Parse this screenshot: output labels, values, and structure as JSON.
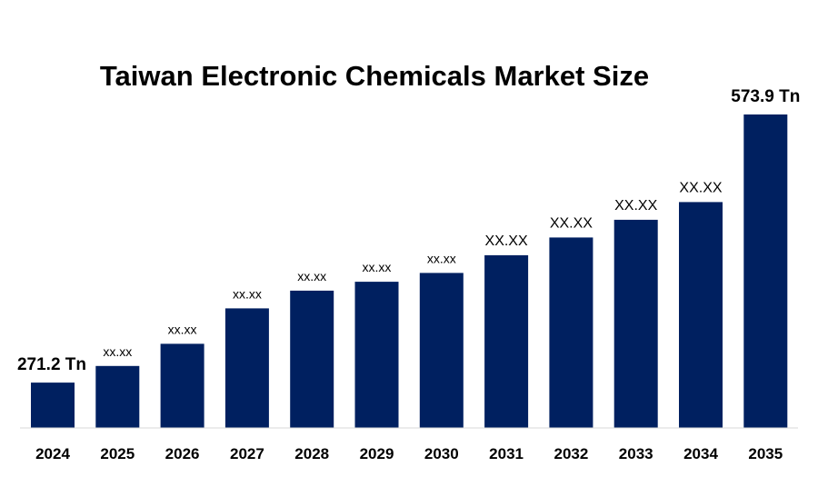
{
  "chart_data": {
    "type": "bar",
    "title": "Taiwan Electronic Chemicals Market Size",
    "xlabel": "",
    "ylabel": "",
    "categories": [
      "2024",
      "2025",
      "2026",
      "2027",
      "2028",
      "2029",
      "2030",
      "2031",
      "2032",
      "2033",
      "2034",
      "2035"
    ],
    "values": [
      271.2,
      290,
      315,
      355,
      375,
      385,
      395,
      415,
      435,
      455,
      475,
      573.9
    ],
    "data_labels": [
      "271.2 Tn",
      "xx.xx",
      "xx.xx",
      "xx.xx",
      "xx.xx",
      "xx.xx",
      "xx.xx",
      "XX.XX",
      "XX.XX",
      "XX.XX",
      "XX.XX",
      "573.9 Tn"
    ],
    "bar_color": "#002060",
    "ylim": [
      220,
      600
    ],
    "grid": false,
    "legend": "none"
  }
}
